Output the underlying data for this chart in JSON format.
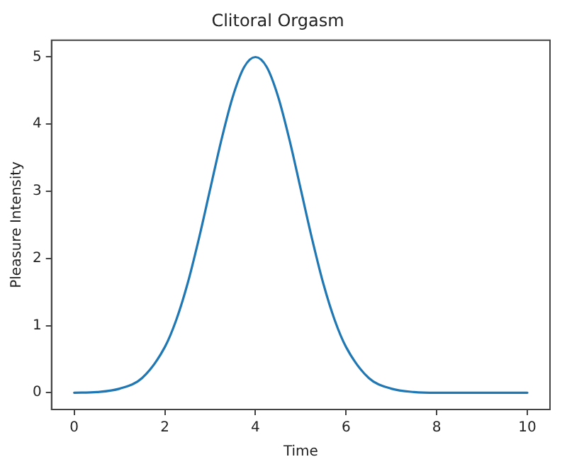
{
  "chart_data": {
    "type": "line",
    "title": "Clitoral Orgasm",
    "xlabel": "Time",
    "ylabel": "Pleasure Intensity",
    "x": [
      0,
      0.5,
      1,
      1.5,
      2,
      2.25,
      2.5,
      2.75,
      3,
      3.25,
      3.5,
      3.75,
      4,
      4.25,
      4.5,
      4.75,
      5,
      5.25,
      5.5,
      5.75,
      6,
      6.5,
      7,
      7.5,
      8,
      9,
      10
    ],
    "series": [
      {
        "color": "#1f77b4",
        "values": [
          0,
          0.01,
          0.06,
          0.22,
          0.68,
          1.08,
          1.62,
          2.29,
          3.03,
          3.77,
          4.41,
          4.85,
          5,
          4.85,
          4.41,
          3.77,
          3.03,
          2.29,
          1.62,
          1.08,
          0.68,
          0.22,
          0.06,
          0.01,
          0,
          0,
          0
        ]
      }
    ],
    "xlim": [
      -0.5,
      10.5
    ],
    "xticks": [
      0,
      2,
      4,
      6,
      8,
      10
    ],
    "ylim": [
      -0.25,
      5.25
    ],
    "yticks": [
      0,
      1,
      2,
      3,
      4,
      5
    ],
    "grid": false,
    "legend": false,
    "marker": "none",
    "line_style": "solid"
  }
}
